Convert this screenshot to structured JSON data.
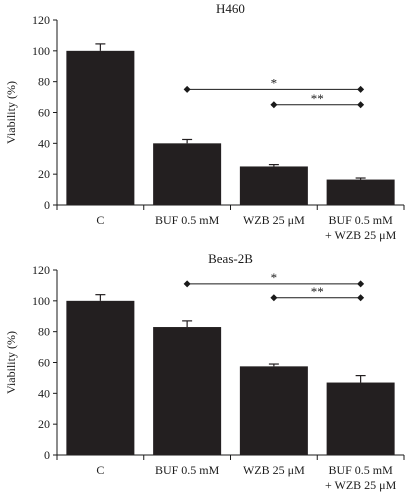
{
  "chart_data": [
    {
      "type": "bar",
      "title": "H460",
      "ylabel": "Viability (%)",
      "ylim": [
        0,
        120
      ],
      "yticks": [
        0,
        20,
        40,
        60,
        80,
        100,
        120
      ],
      "categories": [
        [
          "C"
        ],
        [
          "BUF 0.5 mM"
        ],
        [
          "WZB 25 μM"
        ],
        [
          "BUF 0.5 mM",
          "+ WZB 25 μM"
        ]
      ],
      "values": [
        100,
        40,
        25,
        16.5
      ],
      "errors": [
        4.5,
        2.5,
        1.2,
        1.0
      ],
      "significance": [
        {
          "from": 1,
          "to": 3,
          "y": 75,
          "label": "*"
        },
        {
          "from": 2,
          "to": 3,
          "y": 65,
          "label": "**"
        }
      ],
      "grid": false,
      "bar_color": "#231f20"
    },
    {
      "type": "bar",
      "title": "Beas-2B",
      "ylabel": "Viability (%)",
      "ylim": [
        0,
        120
      ],
      "yticks": [
        0,
        20,
        40,
        60,
        80,
        100,
        120
      ],
      "categories": [
        [
          "C"
        ],
        [
          "BUF 0.5 mM"
        ],
        [
          "WZB 25 μM"
        ],
        [
          "BUF 0.5 mM",
          "+ WZB 25 μM"
        ]
      ],
      "values": [
        100,
        83,
        57.5,
        47
      ],
      "errors": [
        4.0,
        4.0,
        1.5,
        4.5
      ],
      "significance": [
        {
          "from": 1,
          "to": 3,
          "y": 111,
          "label": "*"
        },
        {
          "from": 2,
          "to": 3,
          "y": 102,
          "label": "**"
        }
      ],
      "grid": false,
      "bar_color": "#231f20"
    }
  ]
}
